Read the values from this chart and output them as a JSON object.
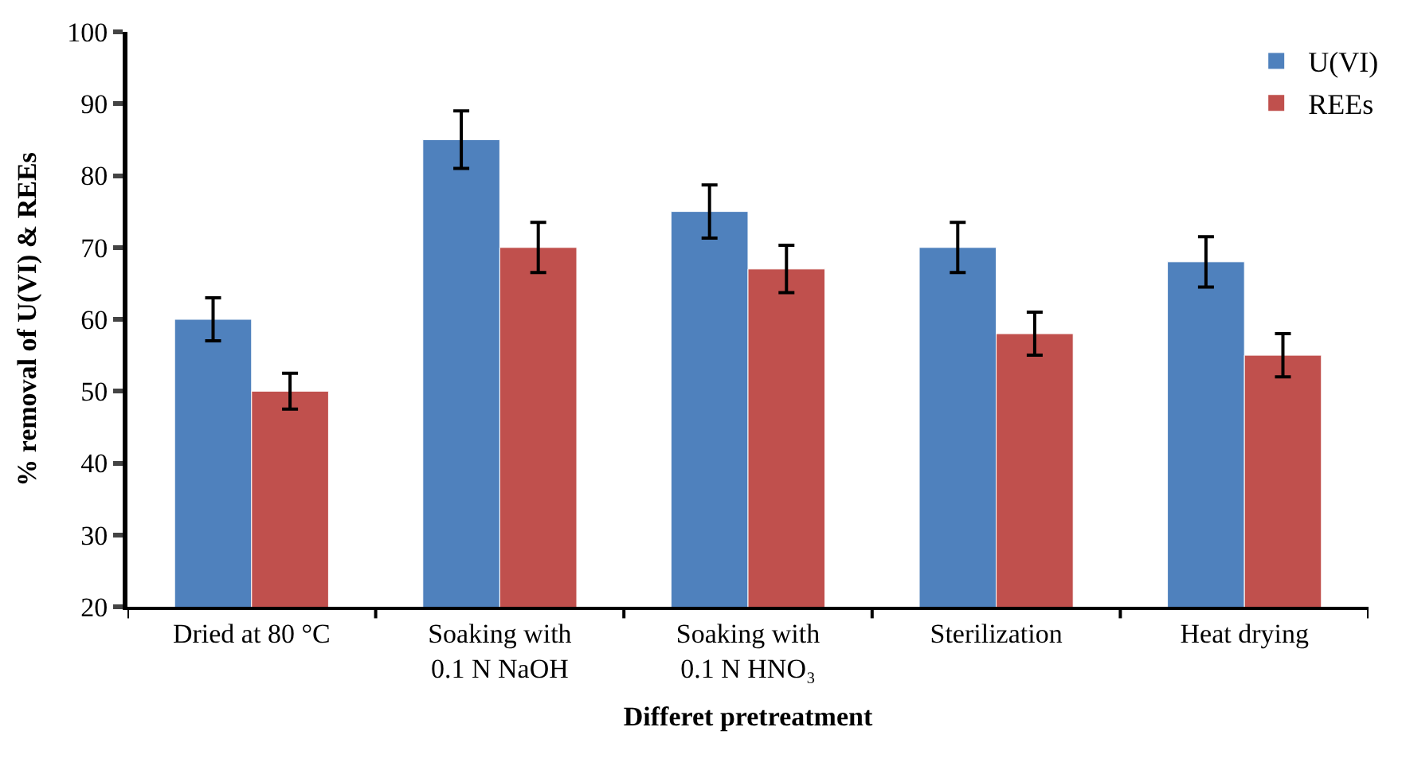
{
  "chart_data": {
    "type": "bar",
    "xlabel": "Differet pretreatment",
    "ylabel": "% removal of U(VI) & REEs",
    "categories": [
      "Dried at 80 °C",
      "Soaking with\n0.1 N NaOH",
      "Soaking with\n0.1 N HNO₃",
      "Sterilization",
      "Heat drying"
    ],
    "series": [
      {
        "name": "U(VI)",
        "color": "#4f81bd",
        "values": [
          60,
          85,
          75,
          70,
          68
        ],
        "errors": [
          3,
          4,
          3.7,
          3.5,
          3.5
        ]
      },
      {
        "name": "REEs",
        "color": "#c0504d",
        "values": [
          50,
          70,
          67,
          58,
          55
        ],
        "errors": [
          2.5,
          3.5,
          3.3,
          3,
          3
        ]
      }
    ],
    "ylim": [
      20,
      100
    ],
    "yticks": [
      20,
      30,
      40,
      50,
      60,
      70,
      80,
      90,
      100
    ],
    "legend": "top right"
  }
}
